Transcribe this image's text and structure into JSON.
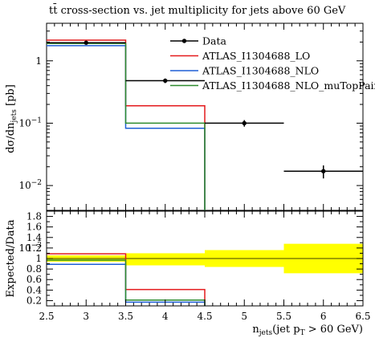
{
  "chart_data": [
    {
      "type": "line",
      "title": "tt̄ cross-section vs. jet multiplicity for jets above 60 GeV",
      "ylabel": "dσ/dn_jets [pb]",
      "yscale": "log",
      "xlim": [
        2.5,
        6.5
      ],
      "ylim": [
        0.004,
        4
      ],
      "legend_position": "top-right",
      "series": [
        {
          "name": "Data",
          "color": "#000000",
          "style": "points",
          "x": [
            3,
            4,
            5,
            6
          ],
          "xerr": [
            0.5,
            0.5,
            0.5,
            0.5
          ],
          "y": [
            1.95,
            0.48,
            0.1,
            0.017
          ],
          "yerr": [
            0.12,
            0.04,
            0.012,
            0.004
          ]
        },
        {
          "name": "ATLAS_I1304688_LO",
          "color": "#e41a1c",
          "style": "step",
          "edges": [
            2.5,
            3.5,
            4.5
          ],
          "values": [
            2.15,
            0.19
          ]
        },
        {
          "name": "ATLAS_I1304688_NLO",
          "color": "#1f5fd6",
          "style": "step",
          "edges": [
            2.5,
            3.5,
            4.5
          ],
          "values": [
            1.75,
            0.083
          ]
        },
        {
          "name": "ATLAS_I1304688_NLO_muTopPairM",
          "color": "#2e8b2e",
          "style": "step",
          "edges": [
            2.5,
            3.5,
            4.5
          ],
          "values": [
            1.9,
            0.1
          ]
        }
      ]
    },
    {
      "type": "line",
      "xlabel": "n_jets(jet p_T > 60 GeV)",
      "ylabel": "Expected/Data",
      "xlim": [
        2.5,
        6.5
      ],
      "ylim": [
        0.1,
        1.9
      ],
      "x_ticks": [
        "2.5",
        "3",
        "3.5",
        "4",
        "4.5",
        "5",
        "5.5",
        "6",
        "6.5"
      ],
      "y_ticks": [
        "0.2",
        "0.4",
        "0.6",
        "0.8",
        "1",
        "1.2",
        "1.4",
        "1.6",
        "1.8"
      ],
      "band": {
        "color": "#ffff00",
        "edges": [
          2.5,
          3.5,
          4.5,
          5.5,
          6.5
        ],
        "lower": [
          0.94,
          0.87,
          0.84,
          0.72
        ],
        "upper": [
          1.06,
          1.1,
          1.16,
          1.28
        ]
      },
      "series": [
        {
          "name": "ATLAS_I1304688_LO",
          "color": "#e41a1c",
          "edges": [
            2.5,
            3.5,
            4.5
          ],
          "values": [
            1.09,
            0.41
          ]
        },
        {
          "name": "ATLAS_I1304688_NLO",
          "color": "#1f5fd6",
          "edges": [
            2.5,
            3.5,
            4.5
          ],
          "values": [
            0.89,
            0.17
          ]
        },
        {
          "name": "ATLAS_I1304688_NLO_muTopPairM",
          "color": "#2e8b2e",
          "edges": [
            2.5,
            3.5,
            4.5
          ],
          "values": [
            0.97,
            0.21
          ]
        }
      ]
    }
  ]
}
